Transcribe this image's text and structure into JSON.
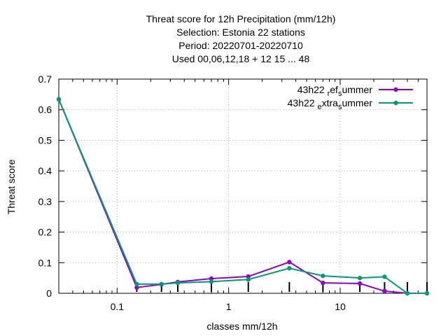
{
  "chart_data": {
    "type": "line",
    "title_lines": [
      "Threat score  for 12h Precipitation (mm/12h)",
      "Selection: Estonia      22 stations",
      "Period: 20220701-20220710",
      "Used  00,06,12,18  + 12 15 ... 48"
    ],
    "xlabel": "classes mm/12h",
    "ylabel": "Threat score",
    "xscale": "log",
    "xlim": [
      0.03,
      60
    ],
    "ylim": [
      0,
      0.7
    ],
    "x_ticks": [
      0.1,
      1,
      10
    ],
    "x_tick_labels": [
      "0.1",
      "1",
      "10"
    ],
    "y_ticks": [
      0,
      0.1,
      0.2,
      0.3,
      0.4,
      0.5,
      0.6,
      0.7
    ],
    "y_tick_labels": [
      "0",
      "0.1",
      "0.2",
      "0.3",
      "0.4",
      "0.5",
      "0.6",
      "0.7"
    ],
    "grid": true,
    "legend_position": "top-right",
    "x": [
      0.03,
      0.15,
      0.25,
      0.35,
      0.7,
      1.5,
      3.5,
      7,
      15,
      25,
      40,
      60
    ],
    "series": [
      {
        "name": "43h22_ref_summer",
        "legend_parts": [
          "43h22 ",
          "r",
          "ef",
          "s",
          "ummer"
        ],
        "color": "#9400d3",
        "marker": "circle",
        "values": [
          0.634,
          0.019,
          0.029,
          0.037,
          0.048,
          0.055,
          0.102,
          0.034,
          0.032,
          0.007,
          0.0,
          0.0
        ]
      },
      {
        "name": "43h22_extra_summer",
        "legend_parts": [
          "43h22 ",
          "e",
          "xtra",
          "s",
          "ummer"
        ],
        "color": "#009e73",
        "marker": "circle",
        "values": [
          0.634,
          0.03,
          0.03,
          0.034,
          0.038,
          0.045,
          0.082,
          0.057,
          0.05,
          0.054,
          0.0,
          0.0
        ]
      }
    ]
  }
}
